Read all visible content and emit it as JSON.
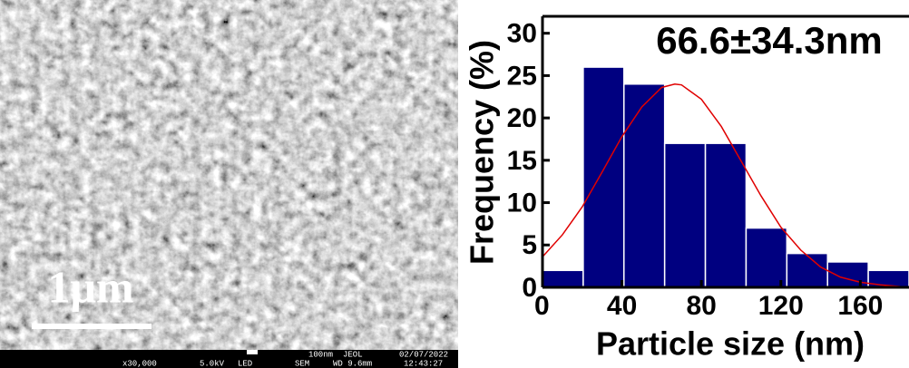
{
  "image": {
    "scale_bar": "1μm",
    "info_left": [
      "x30,000",
      "5.0kV",
      "LED",
      "SEM",
      "WD 9.6mm",
      "12:43:27"
    ],
    "info_right": [
      "100nm",
      "JEOL",
      "02/07/2022"
    ]
  },
  "chart_data": {
    "type": "histogram",
    "annotation": "66.6±34.3nm",
    "x_label": "Particle size (nm)",
    "y_label": "Frequency (%)",
    "bins": [
      0,
      20.5,
      41,
      61.5,
      82,
      102.5,
      123,
      143.5,
      164,
      184.5
    ],
    "values": [
      2,
      26,
      24,
      17,
      17,
      7,
      4,
      3,
      2
    ],
    "color": "#000080",
    "xlim": [
      0,
      184.5
    ],
    "ylim": [
      0,
      32
    ],
    "xticks": [
      0,
      40,
      80,
      120,
      160
    ],
    "yticks": [
      0,
      5,
      10,
      15,
      20,
      25,
      30
    ],
    "fit": {
      "color": "#e00000",
      "x": [
        0,
        10,
        20,
        30,
        40,
        50,
        60,
        66.6,
        70,
        80,
        90,
        100,
        110,
        120,
        130,
        140,
        150,
        160,
        170,
        180
      ],
      "values": [
        3.6,
        6.2,
        9.5,
        13.6,
        17.8,
        21.3,
        23.6,
        24,
        23.9,
        22.2,
        19.0,
        14.9,
        10.8,
        7.1,
        4.4,
        2.4,
        1.2,
        0.6,
        0.3,
        0.1
      ]
    }
  }
}
